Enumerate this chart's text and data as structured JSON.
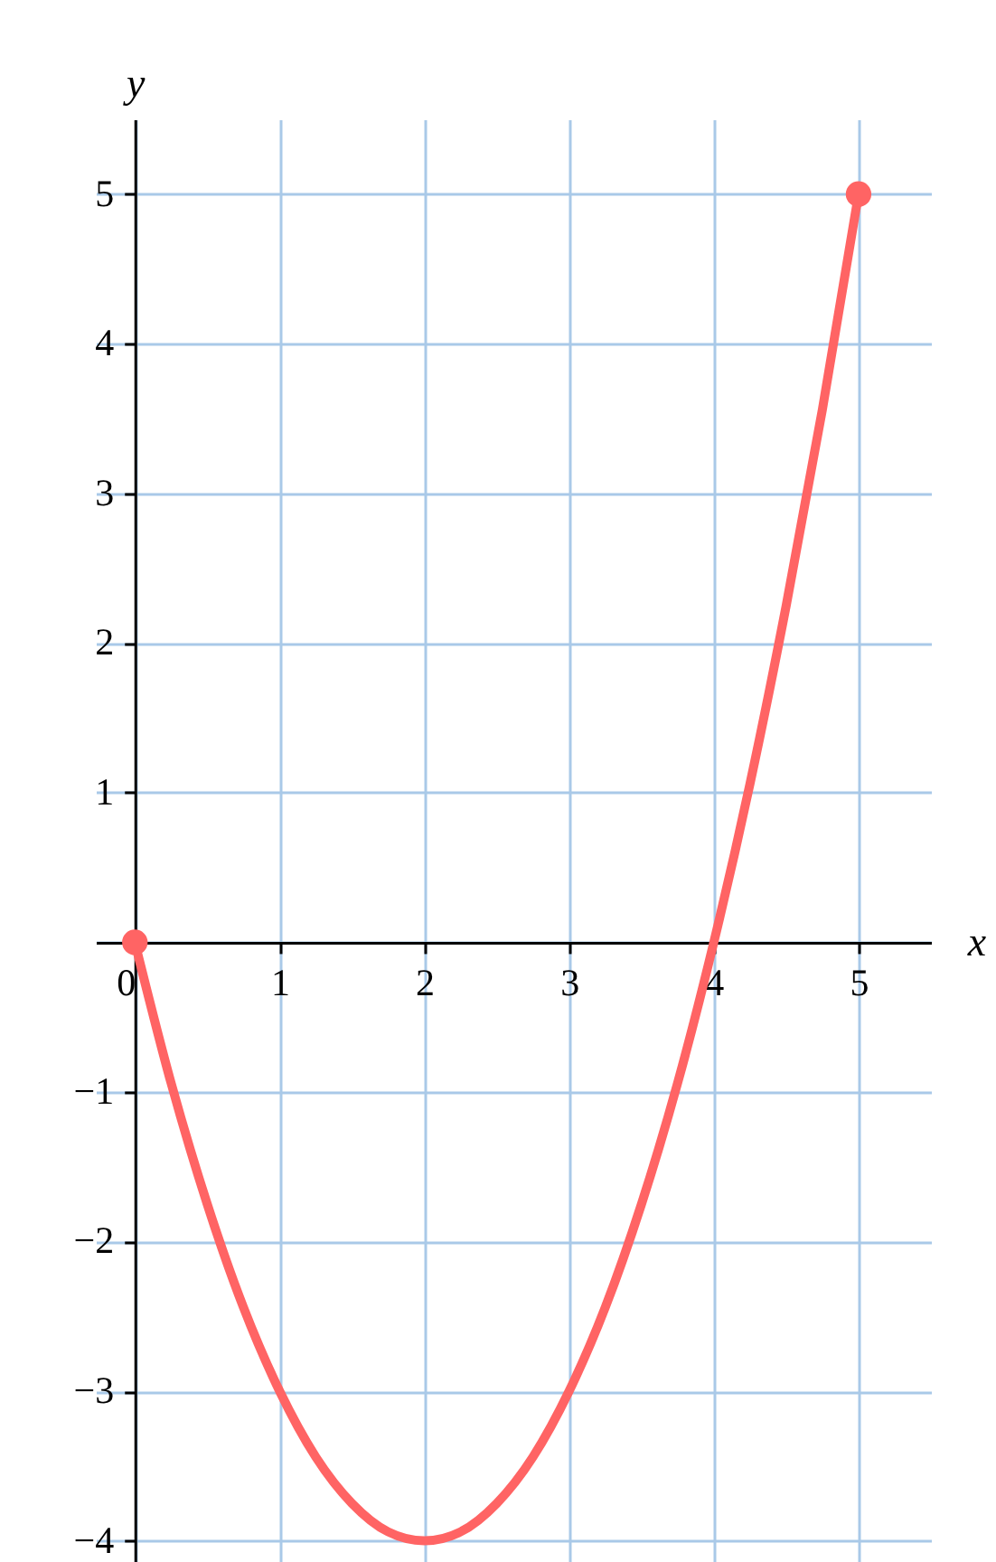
{
  "chart_data": {
    "type": "line",
    "xlabel": "x",
    "ylabel": "y",
    "grid": true,
    "xlim": [
      -0.27,
      5.5
    ],
    "ylim": [
      -4.48,
      5.5
    ],
    "xticks": [
      {
        "value": 0,
        "label": "0"
      },
      1,
      2,
      3,
      4,
      5
    ],
    "yticks": [
      {
        "value": -4,
        "label": "−4"
      },
      {
        "value": -3,
        "label": "−3"
      },
      {
        "value": -2,
        "label": "−2"
      },
      {
        "value": -1,
        "label": "−1"
      },
      {
        "value": 0,
        "label": null
      },
      1,
      2,
      3,
      4,
      5
    ],
    "series": [
      {
        "color": "#ff6464",
        "line_style": "solid",
        "marker": "none",
        "x": [
          0,
          0.25,
          0.5,
          0.75,
          1,
          1.25,
          1.5,
          1.75,
          2,
          2.25,
          2.5,
          2.75,
          3,
          3.25,
          3.5,
          3.75,
          4,
          4.25,
          4.5,
          4.75,
          5
        ],
        "values": [
          0,
          -0.94,
          -1.75,
          -2.44,
          -3,
          -3.44,
          -3.75,
          -3.94,
          -4,
          -3.94,
          -3.75,
          -3.44,
          -3,
          -2.44,
          -1.75,
          -0.94,
          0,
          1.06,
          2.25,
          3.56,
          5
        ]
      },
      {
        "type": "scatter",
        "color": "#ff6464",
        "marker": "circle",
        "x": [
          0,
          5
        ],
        "values": [
          0,
          5
        ]
      }
    ]
  }
}
